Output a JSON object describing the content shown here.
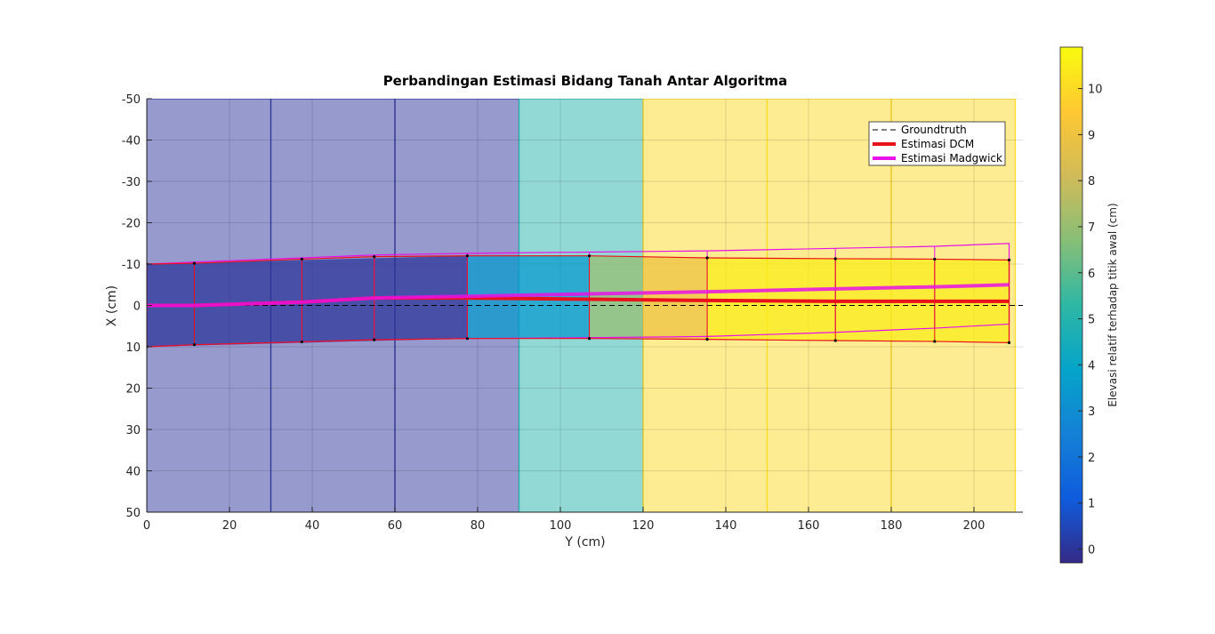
{
  "chart_data": {
    "type": "heatmap",
    "title": "Perbandingan Estimasi Bidang Tanah Antar Algoritma",
    "xlabel": "Y (cm)",
    "ylabel": "X (cm)",
    "xlim": [
      0,
      210
    ],
    "ylim": [
      -50,
      50
    ],
    "y_reversed": true,
    "grid": true,
    "x_ticks": [
      "0",
      "20",
      "40",
      "60",
      "80",
      "100",
      "120",
      "140",
      "160",
      "180",
      "200"
    ],
    "y_ticks": [
      "-50",
      "-40",
      "-30",
      "-20",
      "-10",
      "0",
      "10",
      "20",
      "30",
      "40",
      "50"
    ],
    "elevation_tiles": [
      {
        "x0": 0,
        "x1": 30,
        "elevation": 0
      },
      {
        "x0": 30,
        "x1": 60,
        "elevation": 0
      },
      {
        "x0": 60,
        "x1": 90,
        "elevation": 0
      },
      {
        "x0": 90,
        "x1": 120,
        "elevation": 5
      },
      {
        "x0": 120,
        "x1": 150,
        "elevation": 10
      },
      {
        "x0": 150,
        "x1": 180,
        "elevation": 10
      },
      {
        "x0": 180,
        "x1": 210,
        "elevation": 10
      }
    ],
    "estimated_segments": [
      {
        "x0": 0,
        "x1": 77.5,
        "elevation": 0
      },
      {
        "x0": 77.5,
        "x1": 107,
        "elevation": 3.5
      },
      {
        "x0": 107,
        "x1": 120,
        "elevation": 7
      },
      {
        "x0": 120,
        "x1": 135.5,
        "elevation": 9
      },
      {
        "x0": 135.5,
        "x1": 208.5,
        "elevation": 10.5
      }
    ],
    "dcm_bands": {
      "upper_x": [
        0,
        11.5,
        37.5,
        55,
        77.5,
        107,
        135.5,
        166.5,
        190.5,
        208.5
      ],
      "upper_y": [
        -10,
        -10.2,
        -11.2,
        -11.8,
        -12,
        -12,
        -11.5,
        -11.3,
        -11.2,
        -11
      ],
      "lower_y": [
        10,
        9.5,
        8.8,
        8.3,
        8,
        8,
        8.2,
        8.5,
        8.7,
        9
      ]
    },
    "madgwick_bands": {
      "upper_x": [
        0,
        11.5,
        37.5,
        55,
        77.5,
        107,
        135.5,
        166.5,
        190.5,
        208.5
      ],
      "upper_y": [
        -10,
        -10.5,
        -11.5,
        -12.2,
        -12.6,
        -12.9,
        -13.2,
        -13.8,
        -14.3,
        -15
      ],
      "lower_y": [
        10,
        9.5,
        8.8,
        8.3,
        8,
        7.8,
        7.5,
        6.5,
        5.5,
        4.5
      ]
    },
    "series": [
      {
        "name": "Groundtruth",
        "x": [
          0,
          213
        ],
        "y": [
          0,
          0
        ],
        "color": "#000000",
        "style": "dashed"
      },
      {
        "name": "Estimasi DCM",
        "x": [
          0,
          11.5,
          37.5,
          55,
          77.5,
          107,
          135.5,
          166.5,
          190.5,
          208.5
        ],
        "y": [
          0,
          0,
          -0.8,
          -1.8,
          -1.8,
          -1.5,
          -1.2,
          -1.0,
          -1.0,
          -1.0
        ],
        "color": "#e8121a",
        "style": "solid"
      },
      {
        "name": "Estimasi Madgwick",
        "x": [
          0,
          11.5,
          37.5,
          55,
          77.5,
          107,
          135.5,
          166.5,
          190.5,
          208.5
        ],
        "y": [
          0,
          0,
          -0.8,
          -1.8,
          -2.2,
          -2.8,
          -3.3,
          -4.0,
          -4.5,
          -5.0
        ],
        "color": "#e812e8",
        "style": "solid"
      }
    ],
    "legend": {
      "position": "top-right",
      "entries": [
        "Groundtruth",
        "Estimasi DCM",
        "Estimasi Madgwick"
      ]
    },
    "colorbar": {
      "label": "Elevasi relatif terhadap titik awal (cm)",
      "ticks": [
        "0",
        "1",
        "2",
        "3",
        "4",
        "5",
        "6",
        "7",
        "8",
        "9",
        "10"
      ],
      "range": [
        -0.3,
        10.9
      ]
    }
  },
  "colors": {
    "parula": [
      "#352a87",
      "#0f5cdd",
      "#1481d6",
      "#06a4ca",
      "#2eb7a4",
      "#87bf77",
      "#d1bb59",
      "#fec832",
      "#f9fb0e"
    ]
  }
}
